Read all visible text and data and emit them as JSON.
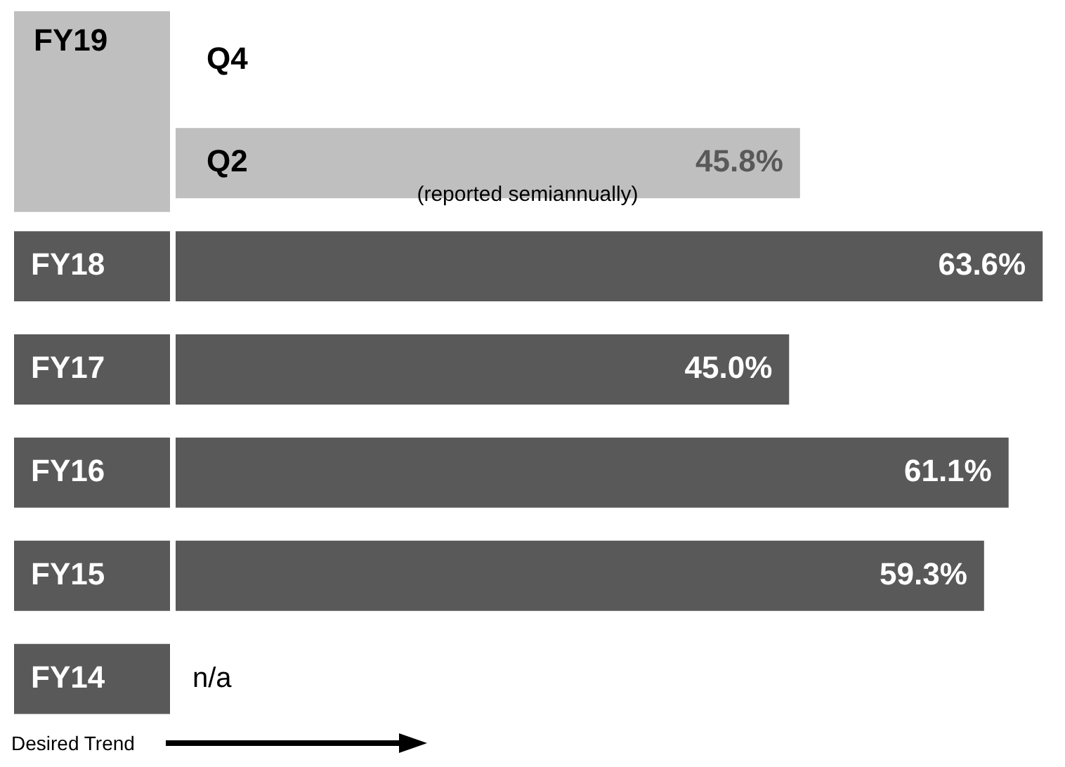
{
  "chart_data": {
    "type": "bar",
    "orientation": "horizontal",
    "categories": [
      "Q4",
      "Q2",
      "FY18",
      "FY17",
      "FY16",
      "FY15",
      "FY14"
    ],
    "values": [
      null,
      45.8,
      63.6,
      45.0,
      61.1,
      59.3,
      null
    ],
    "colors": [
      "#bfbfbf",
      "#bfbfbf",
      "#595959",
      "#595959",
      "#595959",
      "#595959",
      "#595959"
    ],
    "value_labels": [
      null,
      "45.8%",
      "63.6%",
      "45.0%",
      "61.1%",
      "59.3%",
      "n/a"
    ],
    "xlim": [
      0,
      64
    ],
    "annotations": [
      "FY19",
      "(reported semiannually)",
      "Desired Trend"
    ]
  }
}
